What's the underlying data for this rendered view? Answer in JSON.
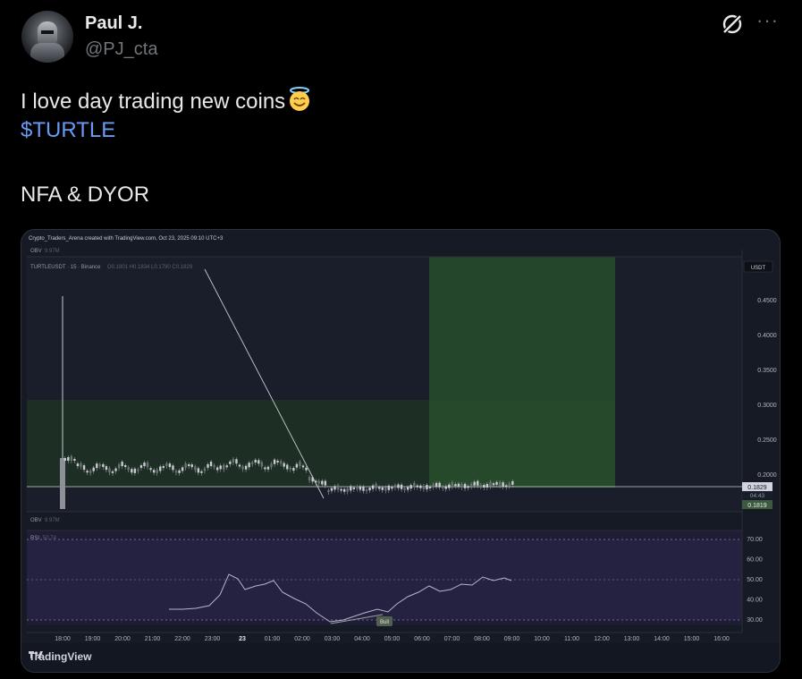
{
  "author": {
    "name": "Paul J.",
    "handle": "@PJ_cta"
  },
  "tweet": {
    "line1": "I love day trading new coins",
    "emoji": "smiling-face-with-halo",
    "cashtag": "$TURTLE",
    "line3": "NFA & DYOR"
  },
  "chart": {
    "watermark": "Crypto_Traders_Arena created with TradingView.com, Oct 23, 2025 09:10 UTC+3",
    "obv_top": "OBV",
    "obv_top_value": "9.97M",
    "symbol_line": "TURTLEUSDT · 15 · Binance",
    "ohlc": "O0.1801 H0.1834 L0.1790 C0.1829",
    "currency": "USDT",
    "price_ticks": [
      "0.4500",
      "0.4000",
      "0.3500",
      "0.3000",
      "0.2500",
      "0.2000"
    ],
    "last_price": "0.1829",
    "countdown": "04:43",
    "marker_price": "0.1819",
    "obv_bottom": "OBV",
    "obv_bottom_value": "9.97M",
    "rsi_label": "RSI",
    "rsi_value": "50.74",
    "rsi_ticks": [
      "70.00",
      "60.00",
      "50.00",
      "40.00",
      "30.00"
    ],
    "rsi_marker": "Bull",
    "time_ticks": [
      "18:00",
      "19:00",
      "20:00",
      "21:00",
      "22:00",
      "23:00",
      "23",
      "01:00",
      "02:00",
      "03:00",
      "04:00",
      "05:00",
      "06:00",
      "07:00",
      "08:00",
      "09:00",
      "10:00",
      "11:00",
      "12:00",
      "13:00",
      "14:00",
      "15:00",
      "16:00"
    ],
    "brand": "TradingView",
    "colors": {
      "up": "#c8cbd0",
      "down": "#8d9096",
      "tp_zone": "#2d4a2e",
      "sl_zone": "#2a3a2a",
      "accent": "#6a9bf4"
    }
  }
}
